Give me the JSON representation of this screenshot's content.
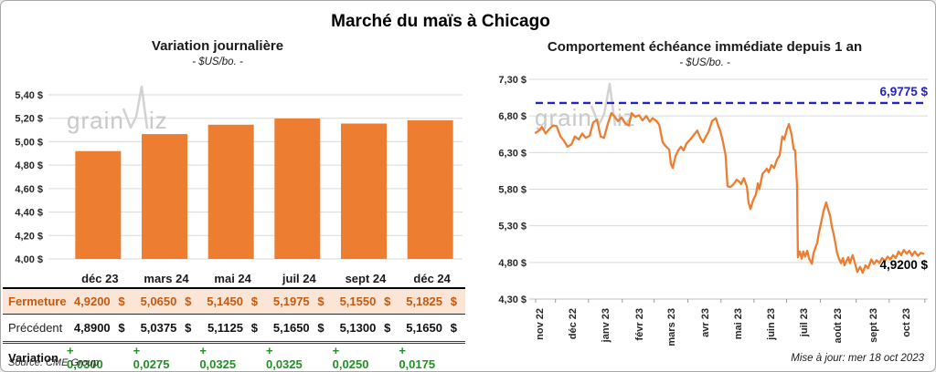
{
  "page": {
    "title": "Marché du maïs à Chicago",
    "updated": "Mise à jour: mer 18 oct 2023",
    "watermark_prefix": "grain",
    "watermark_suffix": "iz"
  },
  "colors": {
    "bar_orange": "#ED7D31",
    "line_orange": "#ED7D31",
    "reference_blue": "#2222CC",
    "fermeture_text": "#C55A11",
    "fermeture_bg": "#FBE5D6",
    "variation_green": "#1E9321",
    "gridline": "#D9D9D9",
    "axis_line": "#BFBFBF",
    "watermark": "#C9C9C9",
    "label_text": "#262626"
  },
  "table": {
    "columns": [
      "déc 23",
      "mars 24",
      "mai 24",
      "juil 24",
      "sept 24",
      "déc 24"
    ],
    "rows": [
      {
        "id": "fermeture",
        "label": "Fermeture",
        "currency": "$",
        "values": [
          "4,9200",
          "5,0650",
          "5,1450",
          "5,1975",
          "5,1550",
          "5,1825"
        ]
      },
      {
        "id": "precedent",
        "label": "Précédent",
        "currency": "$",
        "values": [
          "4,8900",
          "5,0375",
          "5,1125",
          "5,1650",
          "5,1300",
          "5,1650"
        ]
      },
      {
        "id": "variation",
        "label": "Variation",
        "currency": "",
        "values": [
          "+ 0,0300",
          "+ 0,0275",
          "+ 0,0325",
          "+ 0,0325",
          "+ 0,0250",
          "+ 0,0175"
        ]
      }
    ],
    "source": "Source: CME Group"
  },
  "chart_data": [
    {
      "type": "bar",
      "title": "Variation journalière",
      "subtitle": "- $US/bo. -",
      "categories": [
        "déc 23",
        "mars 24",
        "mai 24",
        "juil 24",
        "sept 24",
        "déc 24"
      ],
      "values": [
        4.92,
        5.065,
        5.145,
        5.1975,
        5.155,
        5.1825
      ],
      "ylabel_format": "fr_dollar",
      "ylim": [
        4.0,
        5.4
      ],
      "ytick_step": 0.2,
      "grid": true,
      "legend": false
    },
    {
      "type": "line",
      "title": "Comportement échéance immédiate depuis 1 an",
      "subtitle": "- $US/bo. -",
      "ylim": [
        4.3,
        7.3
      ],
      "ytick_step": 0.5,
      "grid": true,
      "legend": false,
      "reference_line": {
        "value": 6.9775,
        "label": "6,9775 $",
        "style": "dashed"
      },
      "last_point_label": "4,9200 $",
      "last_point_value": 4.92,
      "x_ticks": [
        {
          "label": "nov 22",
          "t": 0.009
        },
        {
          "label": "déc 22",
          "t": 0.094
        },
        {
          "label": "janv 23",
          "t": 0.179
        },
        {
          "label": "févr 23",
          "t": 0.266
        },
        {
          "label": "mars 23",
          "t": 0.348
        },
        {
          "label": "avr 23",
          "t": 0.435
        },
        {
          "label": "mai 23",
          "t": 0.52
        },
        {
          "label": "juin 23",
          "t": 0.605
        },
        {
          "label": "juil 23",
          "t": 0.689
        },
        {
          "label": "août 23",
          "t": 0.776
        },
        {
          "label": "sept 23",
          "t": 0.868
        },
        {
          "label": "oct 23",
          "t": 0.953
        }
      ],
      "points": [
        [
          0.0,
          6.57
        ],
        [
          0.009,
          6.6
        ],
        [
          0.016,
          6.65
        ],
        [
          0.026,
          6.56
        ],
        [
          0.035,
          6.62
        ],
        [
          0.045,
          6.67
        ],
        [
          0.054,
          6.66
        ],
        [
          0.064,
          6.52
        ],
        [
          0.073,
          6.46
        ],
        [
          0.082,
          6.38
        ],
        [
          0.092,
          6.41
        ],
        [
          0.101,
          6.52
        ],
        [
          0.111,
          6.48
        ],
        [
          0.12,
          6.56
        ],
        [
          0.129,
          6.5
        ],
        [
          0.139,
          6.53
        ],
        [
          0.148,
          6.71
        ],
        [
          0.158,
          6.75
        ],
        [
          0.167,
          6.52
        ],
        [
          0.176,
          6.5
        ],
        [
          0.186,
          6.7
        ],
        [
          0.195,
          6.84
        ],
        [
          0.202,
          6.8
        ],
        [
          0.212,
          6.73
        ],
        [
          0.221,
          6.78
        ],
        [
          0.231,
          6.7
        ],
        [
          0.24,
          6.67
        ],
        [
          0.247,
          6.84
        ],
        [
          0.256,
          6.79
        ],
        [
          0.266,
          6.81
        ],
        [
          0.275,
          6.74
        ],
        [
          0.285,
          6.8
        ],
        [
          0.294,
          6.72
        ],
        [
          0.301,
          6.77
        ],
        [
          0.311,
          6.73
        ],
        [
          0.318,
          6.68
        ],
        [
          0.327,
          6.44
        ],
        [
          0.336,
          6.38
        ],
        [
          0.344,
          6.34
        ],
        [
          0.348,
          6.15
        ],
        [
          0.353,
          6.09
        ],
        [
          0.36,
          6.25
        ],
        [
          0.367,
          6.33
        ],
        [
          0.374,
          6.38
        ],
        [
          0.381,
          6.33
        ],
        [
          0.388,
          6.42
        ],
        [
          0.398,
          6.48
        ],
        [
          0.407,
          6.54
        ],
        [
          0.416,
          6.6
        ],
        [
          0.424,
          6.5
        ],
        [
          0.431,
          6.44
        ],
        [
          0.438,
          6.52
        ],
        [
          0.445,
          6.58
        ],
        [
          0.454,
          6.73
        ],
        [
          0.464,
          6.77
        ],
        [
          0.471,
          6.65
        ],
        [
          0.475,
          6.6
        ],
        [
          0.482,
          6.45
        ],
        [
          0.489,
          6.26
        ],
        [
          0.494,
          5.84
        ],
        [
          0.501,
          5.83
        ],
        [
          0.508,
          5.86
        ],
        [
          0.518,
          5.93
        ],
        [
          0.525,
          5.9
        ],
        [
          0.529,
          5.87
        ],
        [
          0.536,
          5.95
        ],
        [
          0.544,
          5.83
        ],
        [
          0.548,
          5.62
        ],
        [
          0.553,
          5.53
        ],
        [
          0.56,
          5.65
        ],
        [
          0.567,
          5.73
        ],
        [
          0.572,
          5.88
        ],
        [
          0.576,
          5.8
        ],
        [
          0.584,
          6.01
        ],
        [
          0.591,
          6.05
        ],
        [
          0.595,
          6.08
        ],
        [
          0.6,
          6.03
        ],
        [
          0.607,
          6.13
        ],
        [
          0.614,
          6.09
        ],
        [
          0.621,
          6.2
        ],
        [
          0.628,
          6.26
        ],
        [
          0.635,
          6.52
        ],
        [
          0.64,
          6.48
        ],
        [
          0.647,
          6.62
        ],
        [
          0.652,
          6.69
        ],
        [
          0.659,
          6.54
        ],
        [
          0.664,
          6.35
        ],
        [
          0.668,
          6.33
        ],
        [
          0.673,
          5.85
        ],
        [
          0.675,
          4.87
        ],
        [
          0.68,
          4.95
        ],
        [
          0.685,
          4.85
        ],
        [
          0.689,
          4.95
        ],
        [
          0.694,
          4.88
        ],
        [
          0.699,
          4.96
        ],
        [
          0.704,
          4.85
        ],
        [
          0.711,
          4.78
        ],
        [
          0.715,
          4.92
        ],
        [
          0.72,
          5.0
        ],
        [
          0.725,
          5.07
        ],
        [
          0.729,
          5.2
        ],
        [
          0.734,
          5.32
        ],
        [
          0.741,
          5.5
        ],
        [
          0.748,
          5.62
        ],
        [
          0.753,
          5.52
        ],
        [
          0.758,
          5.44
        ],
        [
          0.762,
          5.3
        ],
        [
          0.767,
          5.19
        ],
        [
          0.772,
          5.05
        ],
        [
          0.776,
          4.93
        ],
        [
          0.781,
          4.85
        ],
        [
          0.786,
          4.79
        ],
        [
          0.791,
          4.86
        ],
        [
          0.795,
          4.76
        ],
        [
          0.8,
          4.82
        ],
        [
          0.805,
          4.87
        ],
        [
          0.809,
          4.79
        ],
        [
          0.816,
          4.9
        ],
        [
          0.821,
          4.81
        ],
        [
          0.828,
          4.67
        ],
        [
          0.835,
          4.74
        ],
        [
          0.842,
          4.66
        ],
        [
          0.849,
          4.76
        ],
        [
          0.856,
          4.72
        ],
        [
          0.864,
          4.84
        ],
        [
          0.871,
          4.78
        ],
        [
          0.878,
          4.83
        ],
        [
          0.885,
          4.79
        ],
        [
          0.892,
          4.86
        ],
        [
          0.899,
          4.82
        ],
        [
          0.906,
          4.88
        ],
        [
          0.913,
          4.84
        ],
        [
          0.92,
          4.9
        ],
        [
          0.927,
          4.86
        ],
        [
          0.934,
          4.95
        ],
        [
          0.941,
          4.9
        ],
        [
          0.948,
          4.97
        ],
        [
          0.955,
          4.92
        ],
        [
          0.962,
          4.96
        ],
        [
          0.969,
          4.89
        ],
        [
          0.976,
          4.95
        ],
        [
          0.984,
          4.89
        ],
        [
          0.991,
          4.93
        ],
        [
          0.998,
          4.92
        ]
      ]
    }
  ]
}
